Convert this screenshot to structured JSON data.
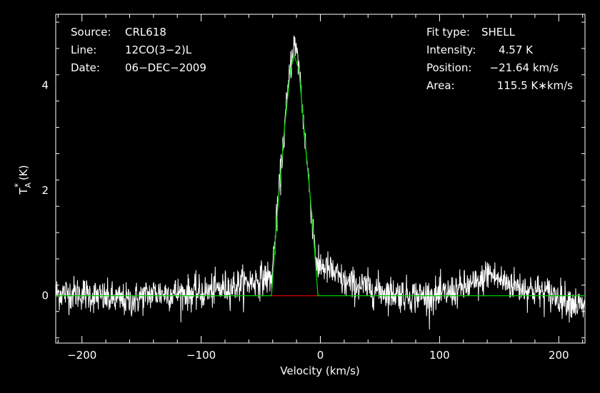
{
  "chart_data": {
    "type": "line",
    "xlabel": "Velocity (km/s)",
    "ylabel": "T",
    "ylabel_sub": "A",
    "ylabel_sup": "*",
    "ylabel_unit": "(K)",
    "xlim": [
      -222,
      222
    ],
    "ylim": [
      -0.9,
      5.35
    ],
    "x_ticks": [
      -200,
      -100,
      0,
      100,
      200
    ],
    "y_ticks": [
      0,
      2,
      4
    ],
    "x_tick_labels": [
      "−200",
      "−100",
      "0",
      "100",
      "200"
    ],
    "y_tick_labels": [
      "0",
      "2",
      "4"
    ],
    "grid": false,
    "background": "#000000",
    "colors": {
      "axes": "#ffffff",
      "spectrum": "#ffffff",
      "fit": "#00cc00",
      "baseline": "#cc0000"
    },
    "info_left": [
      {
        "label": "Source:",
        "value": "CRL618"
      },
      {
        "label": "Line:",
        "value": "12CO(3−2)L"
      },
      {
        "label": "Date:",
        "value": "06−DEC−2009"
      }
    ],
    "info_right": [
      {
        "label": "Fit type:",
        "value": "SHELL"
      },
      {
        "label": "Intensity:",
        "value": "4.57 K"
      },
      {
        "label": "Position:",
        "value": "−21.64 km/s"
      },
      {
        "label": "Area:",
        "value": "115.5 K∗km/s"
      }
    ],
    "fit": {
      "type": "SHELL",
      "intensity": 4.57,
      "position": -21.64,
      "area": 115.5,
      "x": [
        -222,
        -41,
        -36,
        -30,
        -25,
        -22,
        -18,
        -13,
        -7,
        -2,
        222
      ],
      "y": [
        0,
        0,
        1.6,
        3.2,
        4.3,
        4.57,
        4.3,
        3.0,
        1.5,
        0,
        0
      ]
    },
    "baseline_segment": {
      "x": [
        -41,
        -2
      ],
      "y": [
        0,
        0
      ]
    },
    "spectrum_profile": {
      "description_free": true,
      "x": [
        -222,
        -200,
        -180,
        -160,
        -140,
        -120,
        -100,
        -80,
        -60,
        -45,
        -41,
        -36,
        -30,
        -25,
        -22,
        -18,
        -13,
        -7,
        -2,
        0,
        10,
        20,
        40,
        60,
        80,
        100,
        120,
        135,
        140,
        150,
        170,
        190,
        210,
        222
      ],
      "y": [
        0.05,
        0.05,
        -0.05,
        -0.1,
        0.05,
        0.05,
        0.05,
        0.15,
        0.25,
        0.35,
        0.3,
        1.6,
        3.2,
        4.4,
        4.8,
        4.4,
        3.0,
        1.5,
        0.4,
        0.6,
        0.45,
        0.25,
        0.15,
        0.05,
        0.0,
        0.0,
        0.15,
        0.25,
        0.45,
        0.3,
        0.15,
        0.05,
        -0.1,
        -0.25
      ],
      "noise_sigma": 0.16,
      "channel_width_kms": 0.3
    }
  }
}
